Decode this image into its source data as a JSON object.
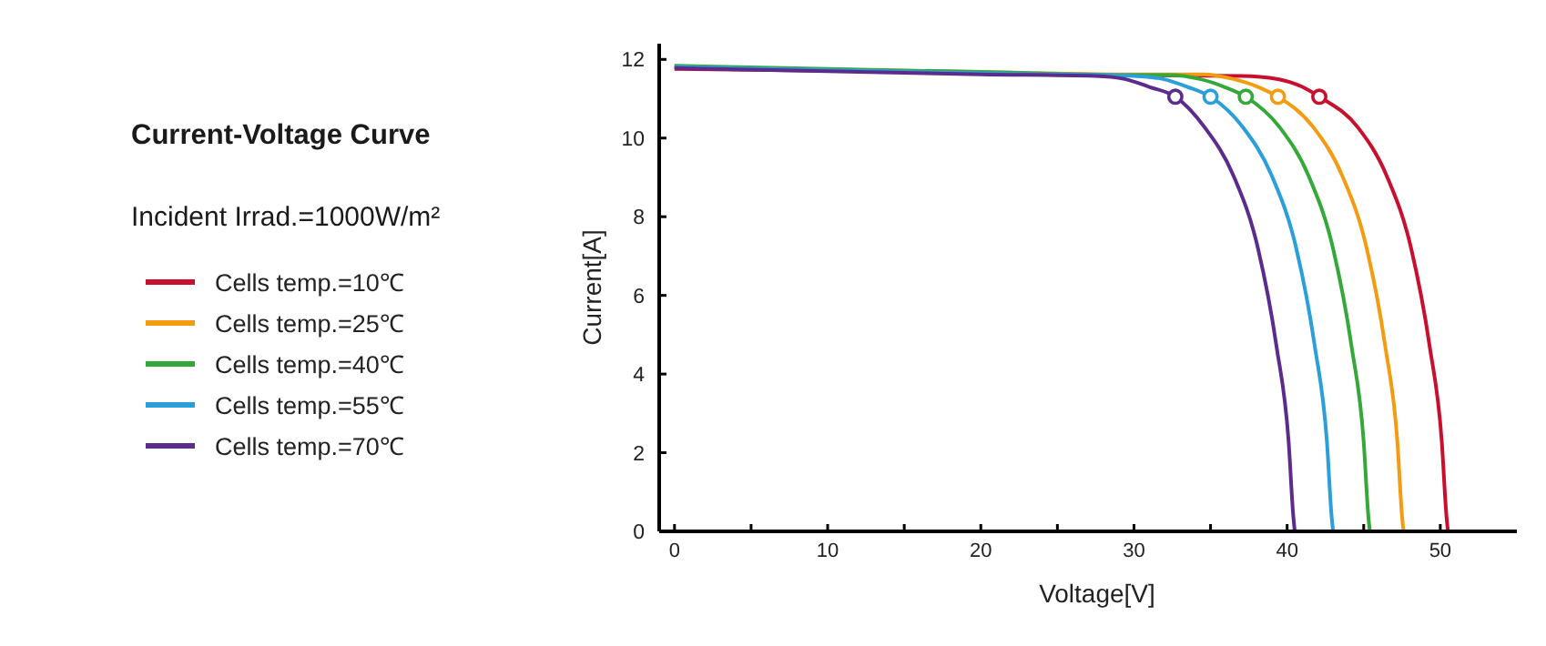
{
  "chart_data": {
    "type": "line",
    "title": "Current-Voltage Curve",
    "subtitle": "Incident Irrad.=1000W/m²",
    "xlabel": "Voltage[V]",
    "ylabel": "Current[A]",
    "xlim": [
      -1,
      55
    ],
    "ylim": [
      0,
      12.4
    ],
    "xticks": [
      0,
      {
        "value": 5,
        "label": null
      },
      10,
      {
        "value": 15,
        "label": null
      },
      20,
      {
        "value": 25,
        "label": null
      },
      30,
      {
        "value": 35,
        "label": null
      },
      40,
      {
        "value": 45,
        "label": null
      },
      50
    ],
    "yticks": [
      0,
      2,
      4,
      6,
      8,
      10,
      12
    ],
    "legend": "left",
    "series": [
      {
        "name": "Cells temp.=10℃",
        "color": "#c8102e",
        "x": [
          0,
          10,
          20,
          30,
          37,
          39.4,
          41,
          42.1,
          44.6,
          46.5,
          48.1,
          49.3,
          50.1,
          50.4,
          50.5
        ],
        "values": [
          11.76,
          11.71,
          11.66,
          11.6,
          11.58,
          11.5,
          11.3,
          11.05,
          10.28,
          9.04,
          7.19,
          4.72,
          2.27,
          0.4,
          0
        ]
      },
      {
        "name": "Cells temp.=25℃",
        "color": "#f39c12",
        "x": [
          0,
          10,
          20,
          30,
          34.5,
          36.5,
          38.1,
          39.4,
          41.7,
          43.6,
          45.2,
          46.4,
          47.2,
          47.5,
          47.6
        ],
        "values": [
          11.8,
          11.74,
          11.68,
          11.62,
          11.62,
          11.5,
          11.3,
          11.05,
          10.28,
          9.04,
          7.19,
          4.72,
          2.27,
          0.4,
          0
        ]
      },
      {
        "name": "Cells temp.=40℃",
        "color": "#35a83a",
        "x": [
          0,
          10,
          20,
          30,
          32.3,
          34.3,
          35.9,
          37.3,
          39.5,
          41.4,
          43,
          44.2,
          45,
          45.3,
          45.4
        ],
        "values": [
          11.84,
          11.76,
          11.68,
          11.6,
          11.6,
          11.5,
          11.3,
          11.05,
          10.28,
          9.04,
          7.19,
          4.72,
          2.27,
          0.4,
          0
        ]
      },
      {
        "name": "Cells temp.=55℃",
        "color": "#2b9fd9",
        "x": [
          0,
          10,
          20,
          28,
          30,
          31.9,
          33.5,
          35,
          37.1,
          39,
          40.6,
          41.8,
          42.6,
          42.9,
          43
        ],
        "values": [
          11.81,
          11.73,
          11.65,
          11.6,
          11.58,
          11.5,
          11.3,
          11.05,
          10.28,
          9.04,
          7.19,
          4.72,
          2.27,
          0.4,
          0
        ]
      },
      {
        "name": "Cells temp.=70℃",
        "color": "#5b2c8c",
        "x": [
          0,
          10,
          20,
          27.5,
          29.4,
          31,
          32.7,
          34.6,
          36.5,
          38.1,
          39.3,
          40.1,
          40.4,
          40.5
        ],
        "values": [
          11.78,
          11.7,
          11.62,
          11.58,
          11.5,
          11.3,
          11.05,
          10.28,
          9.04,
          7.19,
          4.72,
          2.27,
          0.4,
          0
        ]
      },
      {
        "type": "scatter",
        "marker": "circle",
        "colors": [
          "#c8102e",
          "#f39c12",
          "#35a83a",
          "#2b9fd9",
          "#5b2c8c"
        ],
        "x": [
          42.1,
          39.4,
          37.3,
          35.0,
          32.7
        ],
        "values": [
          11.05,
          11.05,
          11.05,
          11.05,
          11.05
        ]
      }
    ]
  }
}
